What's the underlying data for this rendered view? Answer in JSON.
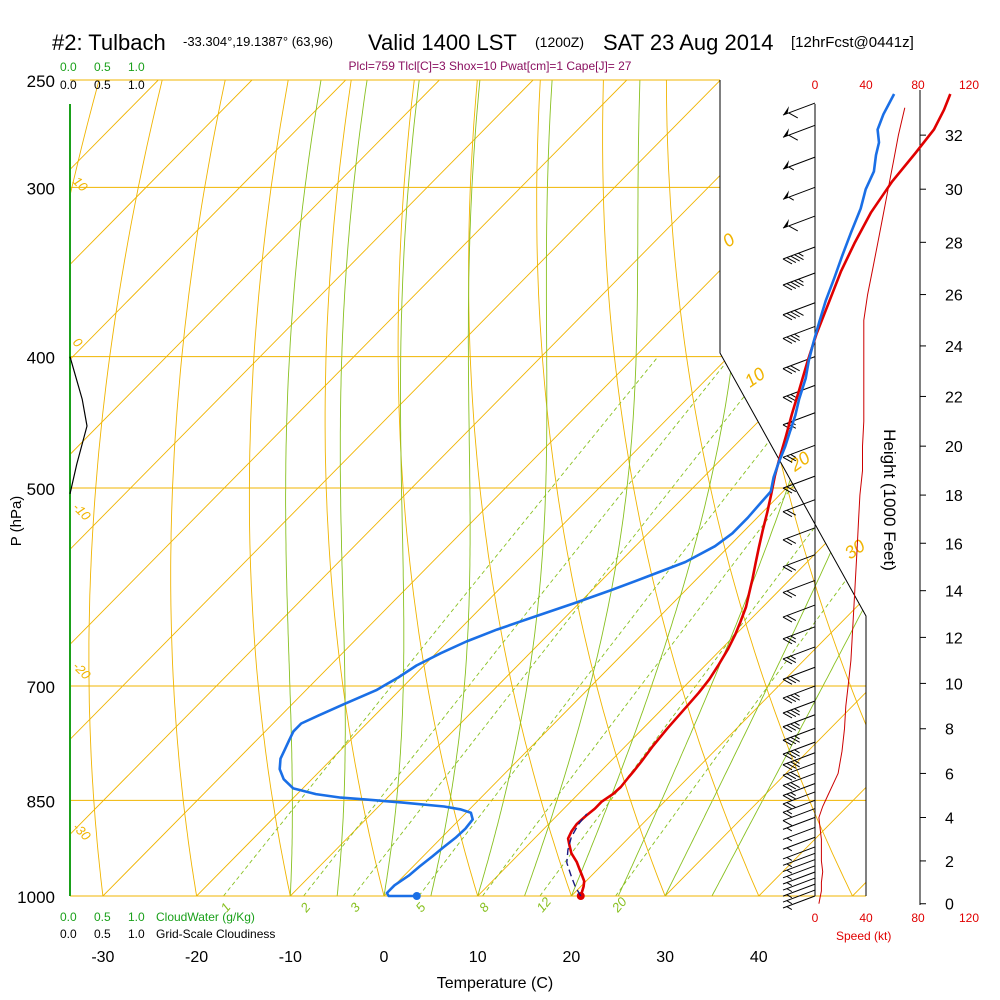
{
  "header": {
    "station": "#2: Tulbach",
    "coords": "-33.304°,19.1387° (63,96)",
    "valid": "Valid 1400 LST",
    "zulu": "(1200Z)",
    "date": "SAT 23 Aug 2014",
    "forecast": "[12hrFcst@0441z]",
    "indices": "Plcl=759 Tlcl[C]=3 Shox=10 Pwat[cm]=1 Cape[J]= 27"
  },
  "colors": {
    "temperature": "#e00000",
    "dewpoint": "#1a6fe6",
    "parcel": "#1a1a80",
    "isotherm": "#f0b400",
    "dry_adiabat": "#f0b400",
    "moist_adiabat": "#88c020",
    "mixing_ratio": "#88c020",
    "cloud_water_axis": "#1aa01a",
    "wind_speed": "#cc0000"
  },
  "labels": {
    "cloud_water": "CloudWater (g/Kg)",
    "cloudiness": "Grid-Scale Cloudiness",
    "scale_ticks": [
      "0.0",
      "0.5",
      "1.0"
    ],
    "speed_unit": "Speed (kt)",
    "speed_ticks": [
      "0",
      "40",
      "80",
      "120"
    ],
    "height_label": "Height (1000 Feet)"
  },
  "chart_data": {
    "type": "line",
    "xlabel": "Temperature (C)",
    "ylabel": "P (hPa)",
    "x_ticks": [
      -30,
      -20,
      -10,
      0,
      10,
      20,
      30,
      40
    ],
    "y_ticks": [
      250,
      300,
      400,
      500,
      700,
      850,
      1000
    ],
    "height_ticks": [
      0,
      2,
      4,
      6,
      8,
      10,
      12,
      14,
      16,
      18,
      20,
      22,
      24,
      26,
      28,
      30,
      32
    ],
    "isotherm_labels": [
      "10",
      "0",
      "-10",
      "-20",
      "-30"
    ],
    "dry_adiabat_labels": [
      "0",
      "10",
      "20",
      "30"
    ],
    "mixing_ratio_labels": [
      "1",
      "2",
      "3",
      "5",
      "8",
      "12",
      "20"
    ],
    "series": [
      {
        "key": "temperature",
        "points": [
          [
            21,
            1000
          ],
          [
            20.7,
            993
          ],
          [
            20.3,
            984
          ],
          [
            19.8,
            975
          ],
          [
            19,
            966
          ],
          [
            18,
            955
          ],
          [
            17,
            944
          ],
          [
            15.5,
            930
          ],
          [
            14.5,
            918
          ],
          [
            13.6,
            907
          ],
          [
            13.2,
            896
          ],
          [
            13,
            885
          ],
          [
            13.1,
            873
          ],
          [
            13.3,
            862
          ],
          [
            13.3,
            852
          ],
          [
            13.7,
            841
          ],
          [
            13.8,
            831
          ],
          [
            13.6,
            817
          ],
          [
            13.5,
            808
          ],
          [
            13.3,
            795
          ],
          [
            12.9,
            775
          ],
          [
            12.6,
            752
          ],
          [
            12.4,
            730
          ],
          [
            12.2,
            708
          ],
          [
            11.9,
            692
          ],
          [
            11.4,
            676
          ],
          [
            10.7,
            657
          ],
          [
            10,
            642
          ],
          [
            9.2,
            628
          ],
          [
            8.2,
            612
          ],
          [
            7.1,
            598
          ],
          [
            5.9,
            583
          ],
          [
            4.6,
            568
          ],
          [
            3.3,
            553
          ],
          [
            1.9,
            537
          ],
          [
            0.5,
            521
          ],
          [
            -1,
            505
          ],
          [
            -2.5,
            490
          ],
          [
            -4,
            474
          ],
          [
            -5.5,
            458
          ],
          [
            -7.2,
            441
          ],
          [
            -9,
            423
          ],
          [
            -11,
            404
          ],
          [
            -13,
            385
          ],
          [
            -15,
            365
          ],
          [
            -17,
            346
          ],
          [
            -18.5,
            330
          ],
          [
            -20,
            313
          ],
          [
            -21,
            297
          ],
          [
            -21.5,
            283
          ],
          [
            -22,
            272
          ],
          [
            -23,
            263
          ],
          [
            -24,
            256
          ]
        ]
      },
      {
        "key": "dewpoint",
        "points": [
          [
            3.5,
            1000
          ],
          [
            0.5,
            1000
          ],
          [
            0,
            995
          ],
          [
            0,
            982
          ],
          [
            0.5,
            966
          ],
          [
            0.7,
            951
          ],
          [
            1,
            935
          ],
          [
            1.2,
            921
          ],
          [
            1.5,
            906
          ],
          [
            1.6,
            892
          ],
          [
            1.4,
            878
          ],
          [
            0.5,
            868
          ],
          [
            -1,
            863
          ],
          [
            -3,
            859
          ],
          [
            -8,
            853
          ],
          [
            -12,
            849
          ],
          [
            -15,
            846
          ],
          [
            -18,
            841
          ],
          [
            -21,
            833
          ],
          [
            -23,
            820
          ],
          [
            -24.5,
            806
          ],
          [
            -25.5,
            792
          ],
          [
            -26,
            780
          ],
          [
            -26.5,
            768
          ],
          [
            -27,
            756
          ],
          [
            -27,
            746
          ],
          [
            -26,
            736
          ],
          [
            -24.5,
            722
          ],
          [
            -22.5,
            705
          ],
          [
            -21.5,
            690
          ],
          [
            -20.8,
            676
          ],
          [
            -19.5,
            662
          ],
          [
            -18,
            649
          ],
          [
            -16,
            636
          ],
          [
            -13.3,
            622
          ],
          [
            -10.5,
            608
          ],
          [
            -8,
            595
          ],
          [
            -5.5,
            581
          ],
          [
            -3,
            567
          ],
          [
            -1.5,
            552
          ],
          [
            -1,
            540
          ],
          [
            -1,
            526
          ],
          [
            -1.2,
            512
          ],
          [
            -1.3,
            503
          ],
          [
            -2.5,
            491
          ],
          [
            -3.5,
            479
          ],
          [
            -4.5,
            466
          ],
          [
            -5.5,
            455
          ],
          [
            -6.7,
            442
          ],
          [
            -8,
            430
          ],
          [
            -9.5,
            415
          ],
          [
            -11,
            403
          ],
          [
            -12.5,
            390
          ],
          [
            -14,
            377
          ],
          [
            -15.5,
            364
          ],
          [
            -17,
            350
          ],
          [
            -18.5,
            337
          ],
          [
            -20,
            324
          ],
          [
            -21.5,
            311
          ],
          [
            -23,
            301
          ],
          [
            -24,
            292
          ],
          [
            -25.5,
            284
          ],
          [
            -26.5,
            278
          ],
          [
            -28,
            272
          ],
          [
            -29,
            265
          ],
          [
            -30,
            256
          ]
        ]
      },
      {
        "key": "parcel",
        "points": [
          [
            21,
            1000
          ],
          [
            19.5,
            985
          ],
          [
            18,
            968
          ],
          [
            16,
            945
          ],
          [
            14.8,
            925
          ],
          [
            13.8,
            905
          ],
          [
            13.2,
            885
          ],
          [
            13,
            870
          ]
        ]
      }
    ],
    "winds": [
      {
        "p": 1000,
        "spd": 3
      },
      {
        "p": 990,
        "spd": 3
      },
      {
        "p": 980,
        "spd": 4
      },
      {
        "p": 970,
        "spd": 5
      },
      {
        "p": 960,
        "spd": 5
      },
      {
        "p": 950,
        "spd": 6
      },
      {
        "p": 940,
        "spd": 6
      },
      {
        "p": 930,
        "spd": 6
      },
      {
        "p": 920,
        "spd": 5
      },
      {
        "p": 905,
        "spd": 5
      },
      {
        "p": 890,
        "spd": 5
      },
      {
        "p": 875,
        "spd": 6
      },
      {
        "p": 862,
        "spd": 10
      },
      {
        "p": 850,
        "spd": 15
      },
      {
        "p": 838,
        "spd": 20
      },
      {
        "p": 826,
        "spd": 25
      },
      {
        "p": 812,
        "spd": 30
      },
      {
        "p": 798,
        "spd": 30
      },
      {
        "p": 784,
        "spd": 35
      },
      {
        "p": 770,
        "spd": 35
      },
      {
        "p": 752,
        "spd": 35
      },
      {
        "p": 735,
        "spd": 35
      },
      {
        "p": 718,
        "spd": 35
      },
      {
        "p": 700,
        "spd": 35
      },
      {
        "p": 678,
        "spd": 30
      },
      {
        "p": 655,
        "spd": 25
      },
      {
        "p": 633,
        "spd": 25
      },
      {
        "p": 610,
        "spd": 20
      },
      {
        "p": 585,
        "spd": 20
      },
      {
        "p": 560,
        "spd": 20
      },
      {
        "p": 535,
        "spd": 20
      },
      {
        "p": 510,
        "spd": 20
      },
      {
        "p": 490,
        "spd": 20
      },
      {
        "p": 465,
        "spd": 25
      },
      {
        "p": 440,
        "spd": 25
      },
      {
        "p": 420,
        "spd": 30
      },
      {
        "p": 400,
        "spd": 30
      },
      {
        "p": 380,
        "spd": 35
      },
      {
        "p": 365,
        "spd": 40
      },
      {
        "p": 347,
        "spd": 45
      },
      {
        "p": 332,
        "spd": 45
      },
      {
        "p": 315,
        "spd": 60
      },
      {
        "p": 300,
        "spd": 55
      },
      {
        "p": 285,
        "spd": 55
      },
      {
        "p": 270,
        "spd": 60
      },
      {
        "p": 260,
        "spd": 60
      }
    ],
    "wind_speed_profile": [
      [
        0,
        3
      ],
      [
        0.3,
        4
      ],
      [
        0.6,
        5
      ],
      [
        1,
        5
      ],
      [
        1.5,
        6
      ],
      [
        2,
        5
      ],
      [
        3,
        5
      ],
      [
        3.5,
        4
      ],
      [
        4,
        3
      ],
      [
        4.5,
        6
      ],
      [
        5,
        10
      ],
      [
        6,
        18
      ],
      [
        7,
        21
      ],
      [
        8,
        23
      ],
      [
        9,
        24
      ],
      [
        10,
        26
      ],
      [
        11,
        28
      ],
      [
        12,
        29
      ],
      [
        13,
        30
      ],
      [
        14,
        31
      ],
      [
        15,
        32
      ],
      [
        16,
        33
      ],
      [
        17,
        34
      ],
      [
        18,
        35
      ],
      [
        19,
        37
      ],
      [
        20,
        37
      ],
      [
        21,
        38
      ],
      [
        22,
        38
      ],
      [
        23,
        38
      ],
      [
        24,
        38
      ],
      [
        25,
        38
      ],
      [
        26,
        41
      ],
      [
        27,
        45
      ],
      [
        28,
        49
      ],
      [
        29,
        53
      ],
      [
        30,
        57
      ],
      [
        31,
        61
      ],
      [
        32,
        65
      ],
      [
        33,
        70
      ]
    ],
    "cloudiness_profile": [
      [
        0,
        400
      ],
      [
        18,
        430
      ],
      [
        25,
        450
      ],
      [
        10,
        480
      ],
      [
        0,
        505
      ]
    ]
  }
}
